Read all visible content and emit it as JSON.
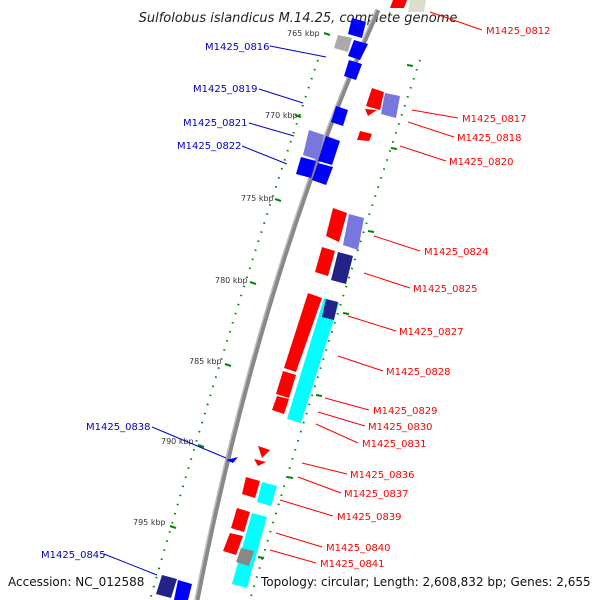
{
  "title": "Sulfolobus islandicus M.14.25, complete genome",
  "accession": "Accession: NC_012588",
  "topology": "Topology: circular; Length: 2,608,832 bp; Genes: 2,655",
  "colors": {
    "forward_label": "#ff0000",
    "reverse_label": "#0000cc",
    "tick": "#008800",
    "backbone": "#888888",
    "cds_forward": "#ff0000",
    "cds_reverse": "#0000ff",
    "cds_light": "#7777dd",
    "cds_dark": "#222288",
    "cds_cyan": "#00ffff",
    "cds_gray": "#888888"
  },
  "ticks": [
    "765 kbp",
    "770 kbp",
    "775 kbp",
    "780 kbp",
    "785 kbp",
    "790 kbp",
    "795 kbp"
  ],
  "forward_labels": [
    "M1425_0812",
    "M1425_0817",
    "M1425_0818",
    "M1425_0820",
    "M1425_0824",
    "M1425_0825",
    "M1425_0827",
    "M1425_0828",
    "M1425_0829",
    "M1425_0830",
    "M1425_0831",
    "M1425_0836",
    "M1425_0837",
    "M1425_0839",
    "M1425_0840",
    "M1425_0841"
  ],
  "reverse_labels": [
    "M1425_0816",
    "M1425_0819",
    "M1425_0821",
    "M1425_0822",
    "M1425_0838",
    "M1425_0845"
  ]
}
